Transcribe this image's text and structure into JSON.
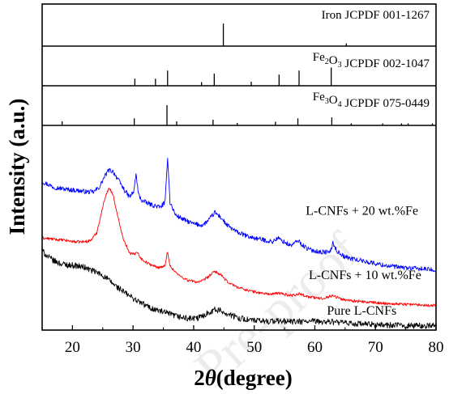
{
  "chart_data": {
    "type": "line",
    "xlabel_main": "2",
    "xlabel_theta": "θ",
    "xlabel_rest": "(degree)",
    "ylabel": "Intensity (a.u.)",
    "xlim": [
      15,
      80
    ],
    "x_ticks": [
      20,
      30,
      40,
      50,
      60,
      70,
      80
    ],
    "x_tick_labels": [
      "20",
      "30",
      "40",
      "50",
      "60",
      "70",
      "80"
    ],
    "grid": false,
    "reference_panels": [
      {
        "label_parts": [
          {
            "text": "Iron JCPDF 001-1267",
            "sub": false
          }
        ],
        "peaks": [
          [
            44.9,
            1.0
          ],
          [
            65.2,
            0.12
          ]
        ]
      },
      {
        "label_parts": [
          {
            "text": "Fe",
            "sub": false
          },
          {
            "text": "2",
            "sub": true
          },
          {
            "text": "O",
            "sub": false
          },
          {
            "text": "3",
            "sub": true
          },
          {
            "text": " JCPDF 002-1047",
            "sub": false
          }
        ],
        "peaks": [
          [
            30.3,
            0.35
          ],
          [
            33.7,
            0.35
          ],
          [
            35.7,
            0.75
          ],
          [
            41.3,
            0.18
          ],
          [
            43.4,
            0.6
          ],
          [
            49.5,
            0.2
          ],
          [
            54.1,
            0.55
          ],
          [
            57.4,
            0.75
          ],
          [
            62.7,
            0.9
          ]
        ]
      },
      {
        "label_parts": [
          {
            "text": "Fe",
            "sub": false
          },
          {
            "text": "3",
            "sub": true
          },
          {
            "text": "O",
            "sub": false
          },
          {
            "text": "4",
            "sub": true
          },
          {
            "text": " JCPDF 075-0449",
            "sub": false
          }
        ],
        "peaks": [
          [
            18.3,
            0.2
          ],
          [
            30.2,
            0.35
          ],
          [
            35.6,
            1.0
          ],
          [
            37.2,
            0.2
          ],
          [
            43.2,
            0.28
          ],
          [
            47.2,
            0.12
          ],
          [
            53.5,
            0.18
          ],
          [
            57.2,
            0.35
          ],
          [
            62.8,
            0.4
          ],
          [
            66.0,
            0.1
          ],
          [
            71.2,
            0.1
          ],
          [
            74.3,
            0.1
          ],
          [
            75.4,
            0.1
          ],
          [
            79.4,
            0.1
          ]
        ]
      }
    ],
    "series": [
      {
        "name": "L-CNFs + 20 wt.%Fe",
        "color": "#0000ff",
        "noise": 0.9,
        "points": [
          [
            15,
            58
          ],
          [
            17,
            55.8
          ],
          [
            19,
            55
          ],
          [
            21,
            54.5
          ],
          [
            22.5,
            54
          ],
          [
            23.5,
            54
          ],
          [
            24.5,
            56
          ],
          [
            25.3,
            60
          ],
          [
            26,
            62.5
          ],
          [
            26.7,
            62
          ],
          [
            27.5,
            59
          ],
          [
            28.5,
            55
          ],
          [
            29.4,
            52
          ],
          [
            30.1,
            54
          ],
          [
            30.5,
            61
          ],
          [
            30.9,
            53
          ],
          [
            31.5,
            50.5
          ],
          [
            33,
            49
          ],
          [
            34.5,
            48
          ],
          [
            35.3,
            50
          ],
          [
            35.7,
            68
          ],
          [
            36.1,
            50
          ],
          [
            37,
            45
          ],
          [
            38.5,
            43
          ],
          [
            40,
            41.5
          ],
          [
            41.5,
            41
          ],
          [
            42.5,
            43
          ],
          [
            43.5,
            46
          ],
          [
            44.5,
            44
          ],
          [
            45.5,
            41
          ],
          [
            47,
            38.5
          ],
          [
            49,
            36.5
          ],
          [
            51,
            35.5
          ],
          [
            53,
            34.5
          ],
          [
            53.9,
            36
          ],
          [
            54.5,
            35
          ],
          [
            56,
            33
          ],
          [
            57.3,
            35
          ],
          [
            57.8,
            33.5
          ],
          [
            59,
            31.5
          ],
          [
            61,
            30.5
          ],
          [
            62.5,
            30.5
          ],
          [
            63,
            34
          ],
          [
            63.6,
            31
          ],
          [
            65,
            28.5
          ],
          [
            68,
            27
          ],
          [
            71,
            25.5
          ],
          [
            74,
            24.5
          ],
          [
            77,
            24
          ],
          [
            80,
            23.5
          ]
        ]
      },
      {
        "name": "L-CNFs + 10 wt.%Fe",
        "color": "#ff0000",
        "noise": 0.55,
        "points": [
          [
            15,
            36
          ],
          [
            17,
            35.5
          ],
          [
            19,
            35
          ],
          [
            20.5,
            34.5
          ],
          [
            22,
            34.5
          ],
          [
            23,
            35
          ],
          [
            24,
            38
          ],
          [
            24.8,
            46
          ],
          [
            25.5,
            53
          ],
          [
            26.1,
            55.5
          ],
          [
            26.7,
            53
          ],
          [
            27.5,
            44
          ],
          [
            28.5,
            35
          ],
          [
            29.5,
            30
          ],
          [
            30.3,
            29.5
          ],
          [
            30.6,
            31
          ],
          [
            31.3,
            28
          ],
          [
            32.5,
            26
          ],
          [
            34,
            24.5
          ],
          [
            35.3,
            25
          ],
          [
            35.7,
            31
          ],
          [
            36.1,
            25
          ],
          [
            37.5,
            21.5
          ],
          [
            39,
            19.5
          ],
          [
            40.5,
            18.8
          ],
          [
            41.5,
            19.2
          ],
          [
            42.5,
            21
          ],
          [
            43.5,
            23
          ],
          [
            44.5,
            21.5
          ],
          [
            45.5,
            19
          ],
          [
            47,
            17
          ],
          [
            49,
            15.5
          ],
          [
            51,
            14.5
          ],
          [
            53,
            14
          ],
          [
            54,
            14.5
          ],
          [
            56,
            13.5
          ],
          [
            57.5,
            14.2
          ],
          [
            59,
            13
          ],
          [
            61,
            12.3
          ],
          [
            63,
            13.5
          ],
          [
            64.5,
            12
          ],
          [
            68,
            11
          ],
          [
            72,
            10.4
          ],
          [
            76,
            10
          ],
          [
            80,
            9.6
          ]
        ]
      },
      {
        "name": "Pure L-CNFs",
        "color": "#000000",
        "noise": 1.2,
        "points": [
          [
            15,
            31
          ],
          [
            16,
            28.5
          ],
          [
            17,
            27
          ],
          [
            18,
            26
          ],
          [
            19,
            25.5
          ],
          [
            20.5,
            25.2
          ],
          [
            22,
            24.5
          ],
          [
            23.5,
            23
          ],
          [
            24.5,
            22
          ],
          [
            25.5,
            20.5
          ],
          [
            27,
            17.5
          ],
          [
            29,
            14
          ],
          [
            31,
            11
          ],
          [
            33,
            8.5
          ],
          [
            35,
            7
          ],
          [
            37,
            5.5
          ],
          [
            39,
            4.5
          ],
          [
            40.5,
            4.5
          ],
          [
            41.5,
            5.5
          ],
          [
            42.5,
            7
          ],
          [
            43.5,
            8
          ],
          [
            44.5,
            7.5
          ],
          [
            45.5,
            6.5
          ],
          [
            47,
            5
          ],
          [
            49,
            4
          ],
          [
            51,
            3.5
          ],
          [
            53,
            3.5
          ],
          [
            55,
            3.5
          ],
          [
            57,
            3.2
          ],
          [
            59,
            3.4
          ],
          [
            61,
            3.3
          ],
          [
            63,
            3.2
          ],
          [
            65,
            2.7
          ],
          [
            68,
            2.3
          ],
          [
            71,
            2
          ],
          [
            74,
            1.8
          ],
          [
            77,
            1.7
          ],
          [
            80,
            1.6
          ]
        ]
      }
    ],
    "series_labels": [
      {
        "text": "L-CNFs + 20 wt.%Fe",
        "x": 58.5,
        "y": 45
      },
      {
        "text": "L-CNFs + 10 wt.%Fe",
        "x": 59,
        "y": 20
      },
      {
        "text": "Pure L-CNFs",
        "x": 62,
        "y": 6
      }
    ],
    "watermark": "Pre-proof"
  }
}
